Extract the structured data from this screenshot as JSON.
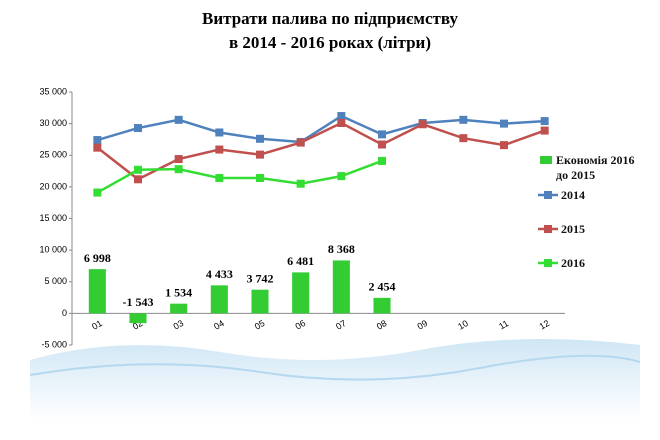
{
  "chart_data": {
    "type": "combo",
    "title": "Витрати палива по підприємству",
    "subtitle": "в 2014 - 2016 роках (літри)",
    "categories": [
      "01",
      "02",
      "03",
      "04",
      "05",
      "06",
      "07",
      "08",
      "09",
      "10",
      "11",
      "12"
    ],
    "series": [
      {
        "name": "Економія 2016 до 2015",
        "type": "bar",
        "color": "#33cc33",
        "values": [
          6998,
          -1543,
          1534,
          4433,
          3742,
          6481,
          8368,
          2454,
          null,
          null,
          null,
          null
        ],
        "value_labels": [
          "6 998",
          "-1 543",
          "1 534",
          "4 433",
          "3 742",
          "6 481",
          "8 368",
          "2 454",
          null,
          null,
          null,
          null
        ]
      },
      {
        "name": "2014",
        "type": "line",
        "color": "#4f81bd",
        "values": [
          27400,
          29300,
          30600,
          28600,
          27600,
          27100,
          31200,
          28300,
          30100,
          30600,
          30000,
          30400
        ]
      },
      {
        "name": "2015",
        "type": "line",
        "color": "#c0504d",
        "values": [
          26200,
          21200,
          24400,
          25900,
          25100,
          27000,
          30100,
          26700,
          29900,
          27700,
          26600,
          28900
        ]
      },
      {
        "name": "2016",
        "type": "line",
        "color": "#33dd33",
        "values": [
          19100,
          22700,
          22800,
          21400,
          21400,
          20500,
          21700,
          24100,
          null,
          null,
          null,
          null
        ]
      }
    ],
    "ylim": [
      -5000,
      35000
    ],
    "yticks": [
      {
        "value": -5000,
        "label": "-5 000"
      },
      0,
      {
        "value": 5000,
        "label": "5 000"
      },
      {
        "value": 10000,
        "label": "10 000"
      },
      {
        "value": 15000,
        "label": "15 000"
      },
      {
        "value": 20000,
        "label": "20 000"
      },
      {
        "value": 25000,
        "label": "25 000"
      },
      {
        "value": 30000,
        "label": "30 000"
      },
      {
        "value": 35000,
        "label": "35 000"
      }
    ]
  }
}
